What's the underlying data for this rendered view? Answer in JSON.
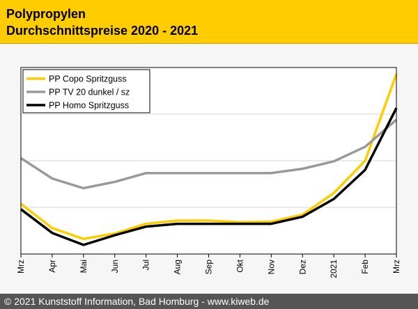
{
  "header": {
    "title_line1": "Polypropylen",
    "title_line2": "Durchschnittspreise 2020 - 2021",
    "background": "#ffcc00"
  },
  "footer": {
    "text": "© 2021 Kunststoff Information, Bad Homburg - www.kiweb.de",
    "background": "#555555"
  },
  "chart_data": {
    "type": "line",
    "title": "Polypropylen Durchschnittspreise 2020 - 2021",
    "xlabel": "",
    "ylabel": "",
    "categories": [
      "Mrz",
      "Apr",
      "Mai",
      "Jun",
      "Jul",
      "Aug",
      "Sep",
      "Okt",
      "Nov",
      "Dez",
      "2021",
      "Feb",
      "Mrz"
    ],
    "ylim": [
      0,
      100
    ],
    "y_tick_labels_shown": false,
    "grid": "horizontal",
    "legend_position": "top-left",
    "series": [
      {
        "name": "PP Copo Spritzguss",
        "color": "#ffcc00",
        "values": [
          26.9,
          13.9,
          8.1,
          11.0,
          16.2,
          17.9,
          17.9,
          17.1,
          17.3,
          21.1,
          32.7,
          50.0,
          96.5
        ]
      },
      {
        "name": "PP TV 20 dunkel / sz",
        "color": "#999999",
        "values": [
          51.4,
          40.5,
          35.3,
          38.7,
          43.4,
          43.4,
          43.4,
          43.4,
          43.4,
          45.7,
          49.7,
          57.5,
          72.0
        ]
      },
      {
        "name": "PP Homo Spritzguss",
        "color": "#000000",
        "values": [
          24.0,
          11.3,
          4.9,
          10.1,
          14.7,
          16.2,
          16.2,
          16.2,
          16.2,
          20.0,
          29.5,
          45.1,
          78.3
        ]
      }
    ]
  }
}
